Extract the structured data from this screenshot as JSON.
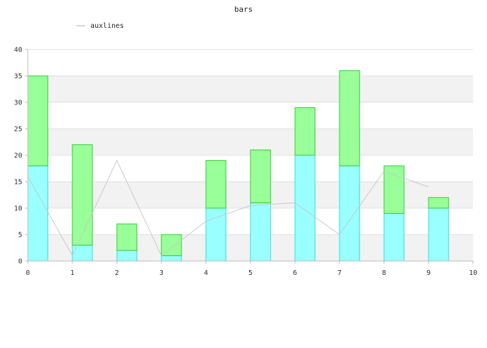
{
  "chart_data": {
    "type": "bar",
    "title": "bars",
    "xlabel": "",
    "ylabel": "",
    "xlim": [
      0,
      10
    ],
    "ylim": [
      0,
      40
    ],
    "x_ticks": [
      0,
      1,
      2,
      3,
      4,
      5,
      6,
      7,
      8,
      9,
      10
    ],
    "y_ticks": [
      0,
      5,
      10,
      15,
      20,
      25,
      30,
      35,
      40
    ],
    "x": [
      0,
      1,
      2,
      3,
      4,
      5,
      6,
      7,
      8,
      9
    ],
    "bar_width": 0.45,
    "stacked": true,
    "grid": "horizontal bands",
    "legend_position": "top-left",
    "series": [
      {
        "values": [
          18,
          3,
          2,
          1,
          10,
          11,
          20,
          18,
          9,
          10
        ],
        "color": "#99ffff",
        "stroke": "#33dddd"
      },
      {
        "values": [
          17,
          19,
          5,
          4,
          9,
          10,
          9,
          18,
          9,
          2
        ],
        "color": "#99ff99",
        "stroke": "#33cc33"
      }
    ],
    "lines": [
      {
        "name": "auxlines",
        "x": [
          0,
          1,
          2,
          3,
          4,
          5,
          6,
          7,
          8,
          9
        ],
        "values": [
          16,
          1,
          19,
          1,
          7.5,
          10.5,
          11,
          5,
          17,
          14
        ],
        "color": "#c8c8c8"
      }
    ],
    "colors": {
      "band": "#f2f2f2",
      "gridline": "#e0e0e0",
      "axis": "#bbbbbb"
    }
  }
}
